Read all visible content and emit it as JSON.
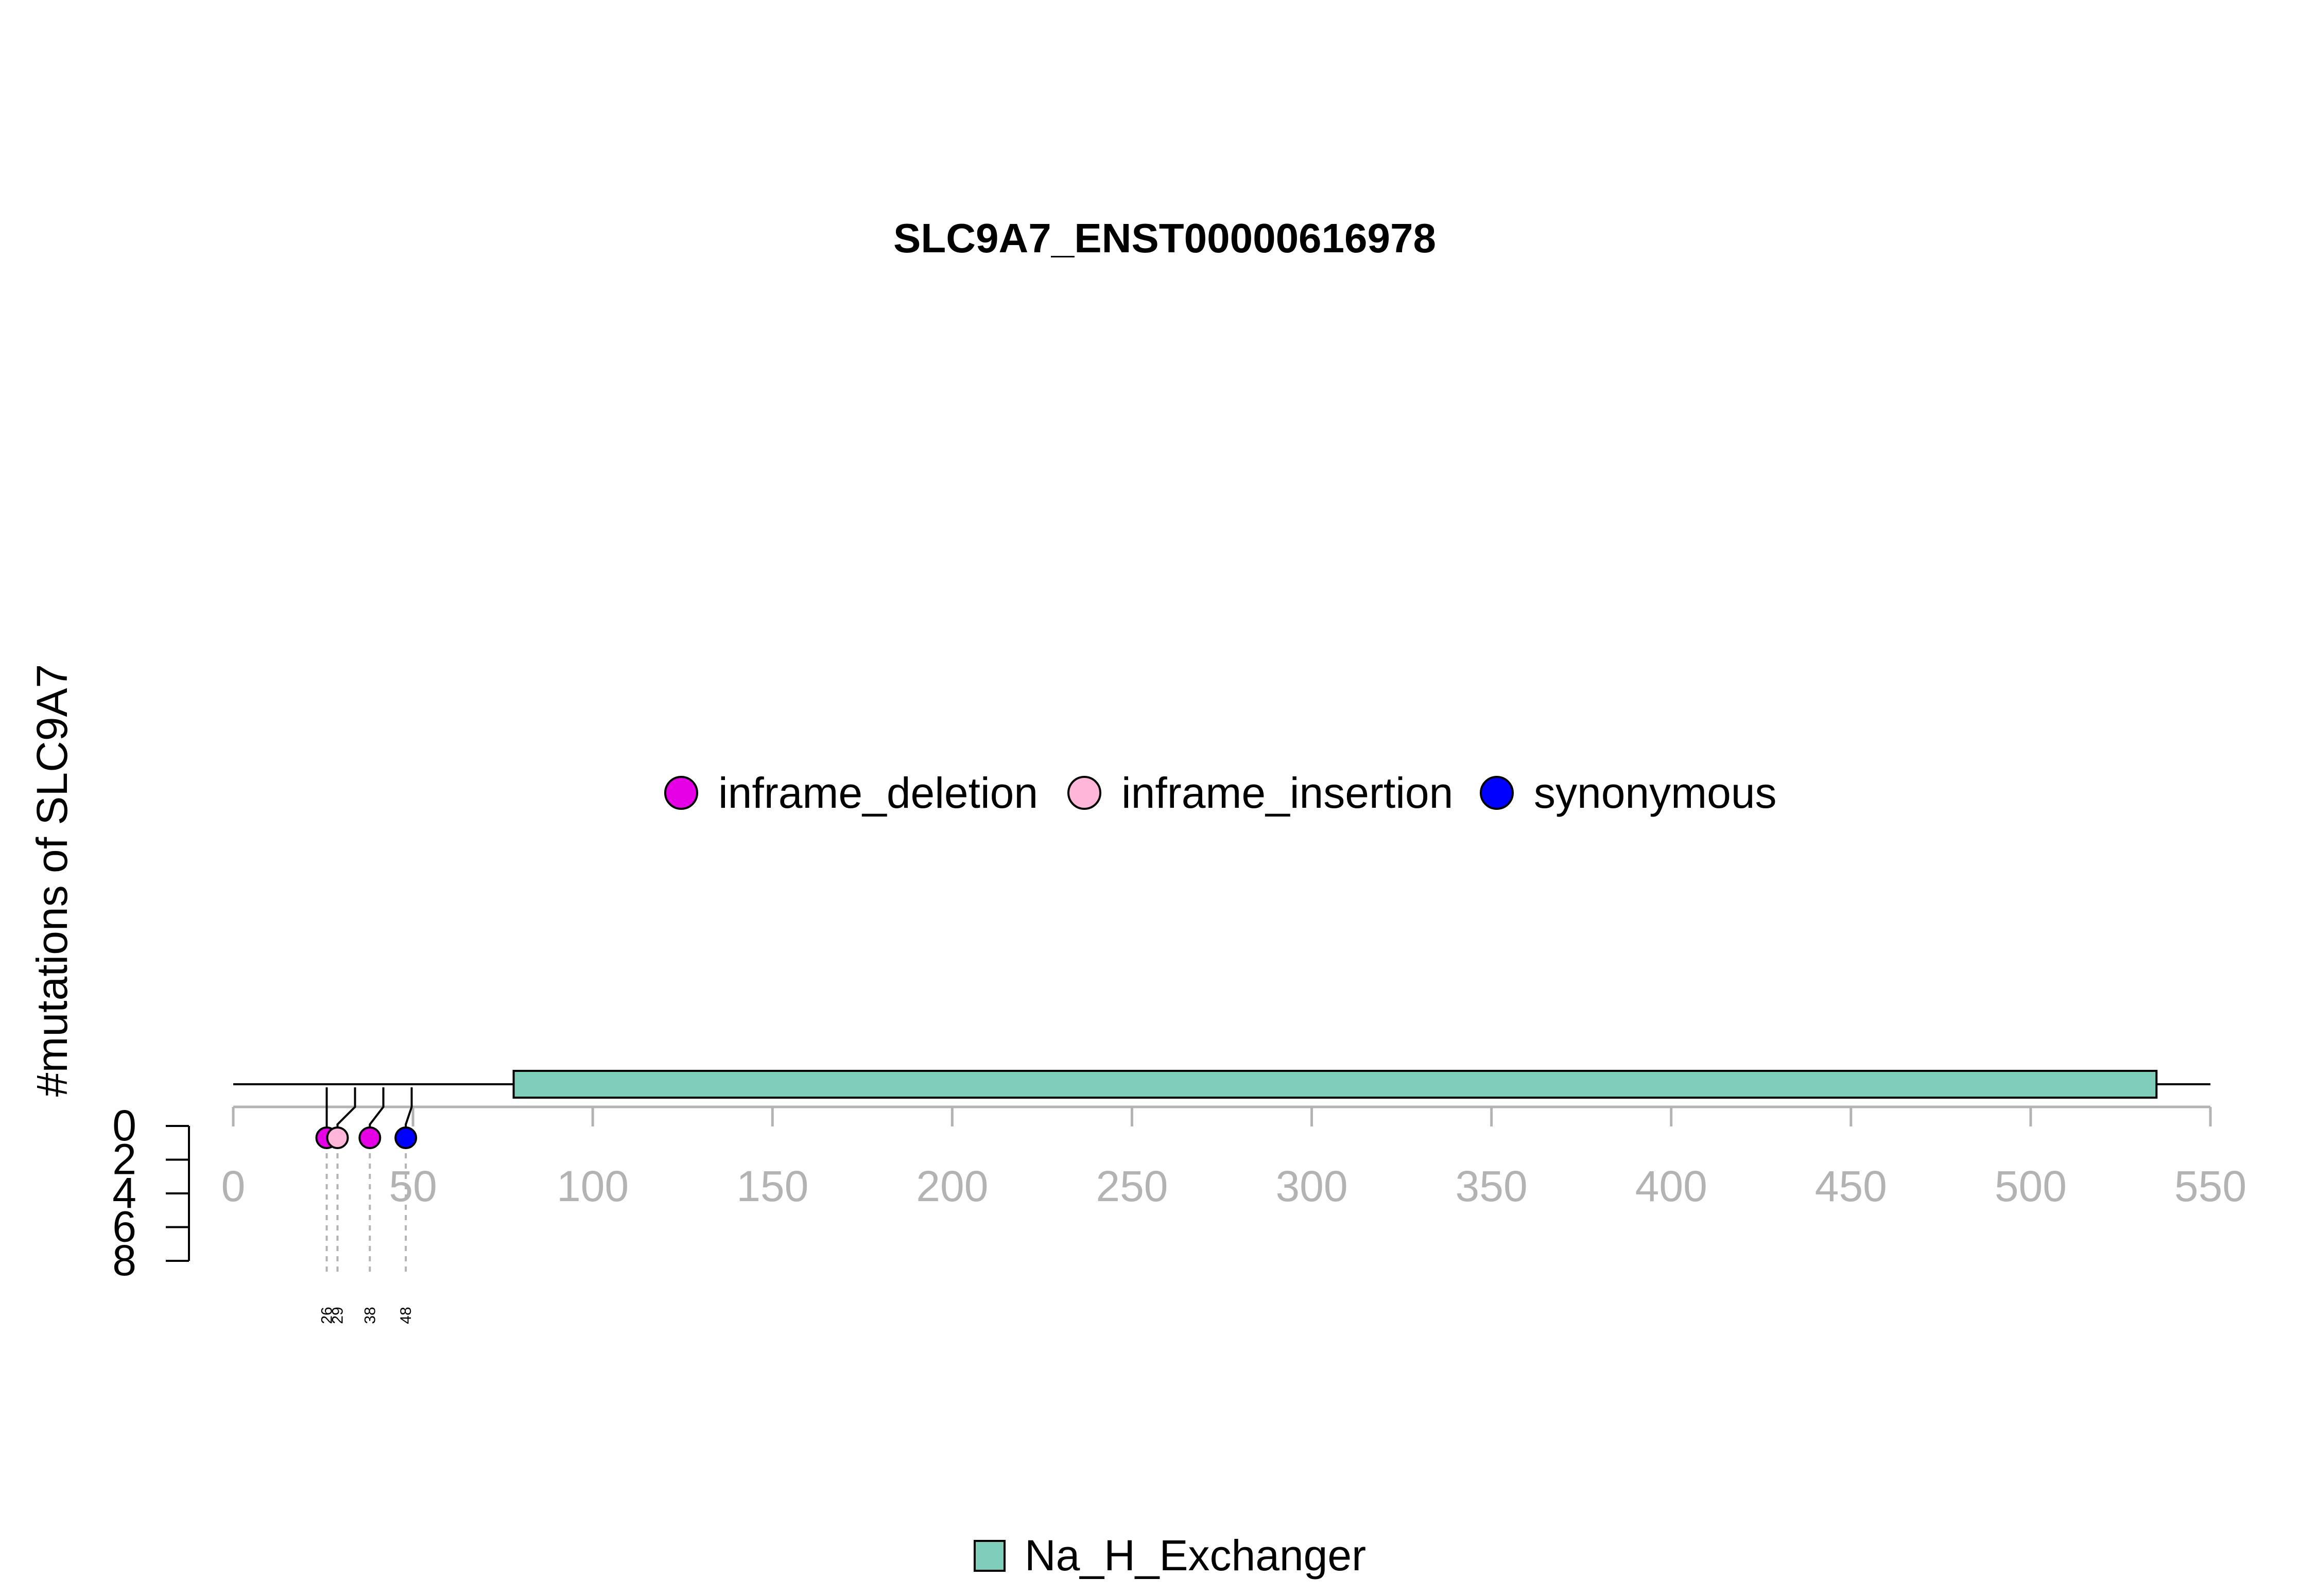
{
  "chart_data": {
    "type": "lollipop",
    "title": "SLC9A7_ENST00000616978",
    "ylabel": "#mutations of SLC9A7",
    "xlim": [
      0,
      550
    ],
    "x_ticks": [
      0,
      50,
      100,
      150,
      200,
      250,
      300,
      350,
      400,
      450,
      500,
      550
    ],
    "ylim": [
      0,
      8
    ],
    "y_ticks": [
      0,
      2,
      4,
      6,
      8
    ],
    "protein_length": 550,
    "mutation_legend": [
      {
        "label": "inframe_deletion",
        "color": "#e600e6"
      },
      {
        "label": "inframe_insertion",
        "color": "#ffb6d9"
      },
      {
        "label": "synonymous",
        "color": "#0000ff"
      }
    ],
    "mutations": [
      {
        "position": 26,
        "count": 1,
        "type": "inframe_deletion",
        "color": "#e600e6",
        "label": "26"
      },
      {
        "position": 29,
        "count": 1,
        "type": "inframe_insertion",
        "color": "#ffb6d9",
        "label": "29"
      },
      {
        "position": 38,
        "count": 1,
        "type": "inframe_deletion",
        "color": "#e600e6",
        "label": "38"
      },
      {
        "position": 48,
        "count": 1,
        "type": "synonymous",
        "color": "#0000ff",
        "label": "48"
      }
    ],
    "domains": [
      {
        "name": "Na_H_Exchanger",
        "start": 78,
        "end": 535,
        "color": "#7fcdbb"
      }
    ],
    "domain_legend": [
      {
        "label": "Na_H_Exchanger",
        "color": "#7fcdbb"
      }
    ]
  }
}
